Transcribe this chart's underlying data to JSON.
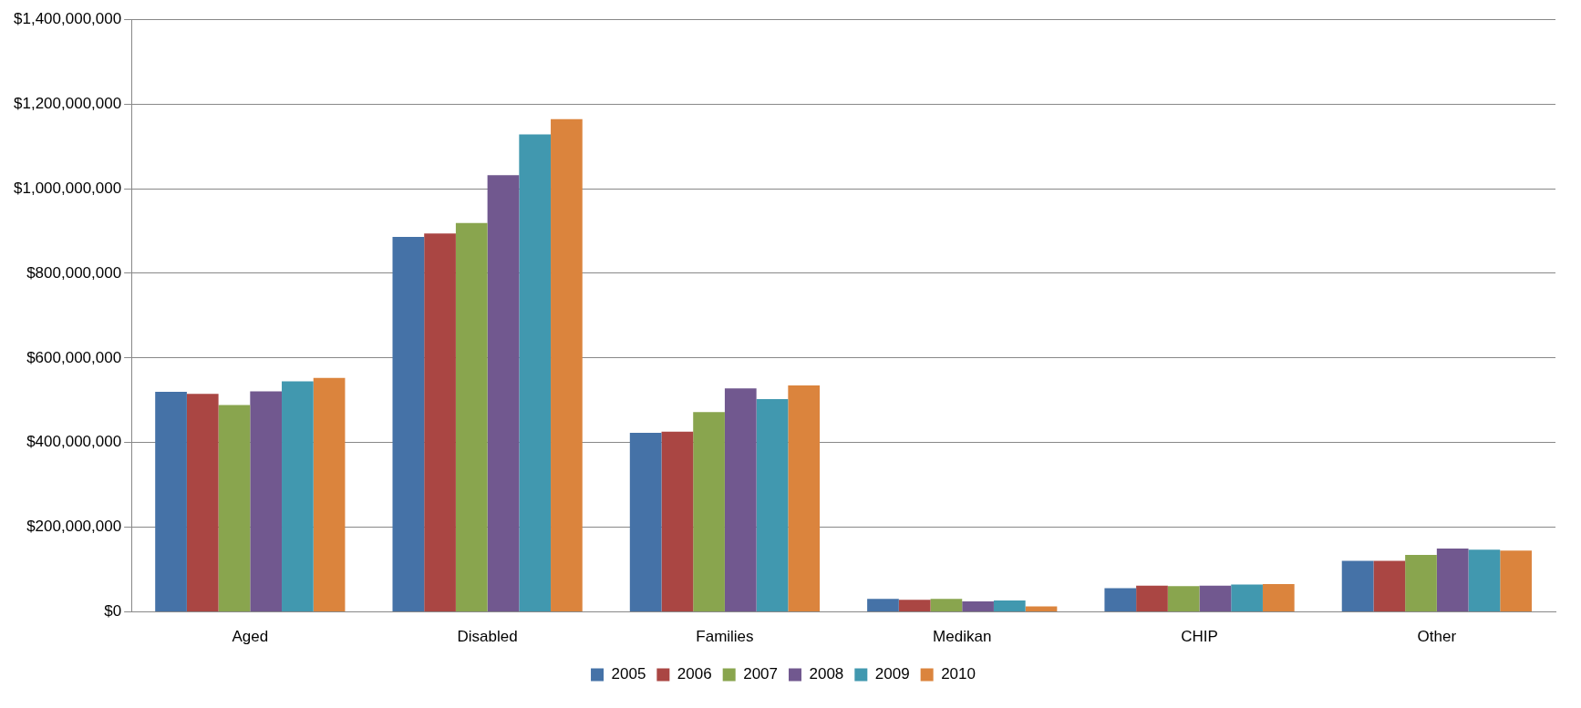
{
  "chart_data": {
    "type": "bar",
    "categories": [
      "Aged",
      "Disabled",
      "Families",
      "Medikan",
      "CHIP",
      "Other"
    ],
    "series": [
      {
        "name": "2005",
        "color": "#4572a7",
        "values": [
          520000000,
          886000000,
          423000000,
          31000000,
          56000000,
          121000000
        ]
      },
      {
        "name": "2006",
        "color": "#aa4643",
        "values": [
          515000000,
          894000000,
          426000000,
          29000000,
          62000000,
          121000000
        ]
      },
      {
        "name": "2007",
        "color": "#89a54e",
        "values": [
          489000000,
          919000000,
          472000000,
          31000000,
          61000000,
          135000000
        ]
      },
      {
        "name": "2008",
        "color": "#71588f",
        "values": [
          521000000,
          1032000000,
          528000000,
          25000000,
          62000000,
          150000000
        ]
      },
      {
        "name": "2009",
        "color": "#4198af",
        "values": [
          545000000,
          1128000000,
          503000000,
          27000000,
          65000000,
          147000000
        ]
      },
      {
        "name": "2010",
        "color": "#db843d",
        "values": [
          553000000,
          1164000000,
          535000000,
          13000000,
          66000000,
          145000000
        ]
      }
    ],
    "ylim": [
      0,
      1400000000
    ],
    "yticks": [
      {
        "value": 0,
        "label": "$0"
      },
      {
        "value": 200000000,
        "label": "$200,000,000"
      },
      {
        "value": 400000000,
        "label": "$400,000,000"
      },
      {
        "value": 600000000,
        "label": "$600,000,000"
      },
      {
        "value": 800000000,
        "label": "$800,000,000"
      },
      {
        "value": 1000000000,
        "label": "$1,000,000,000"
      },
      {
        "value": 1200000000,
        "label": "$1,200,000,000"
      },
      {
        "value": 1400000000,
        "label": "$1,400,000,000"
      }
    ],
    "grid": "y",
    "legend": "bottom"
  }
}
